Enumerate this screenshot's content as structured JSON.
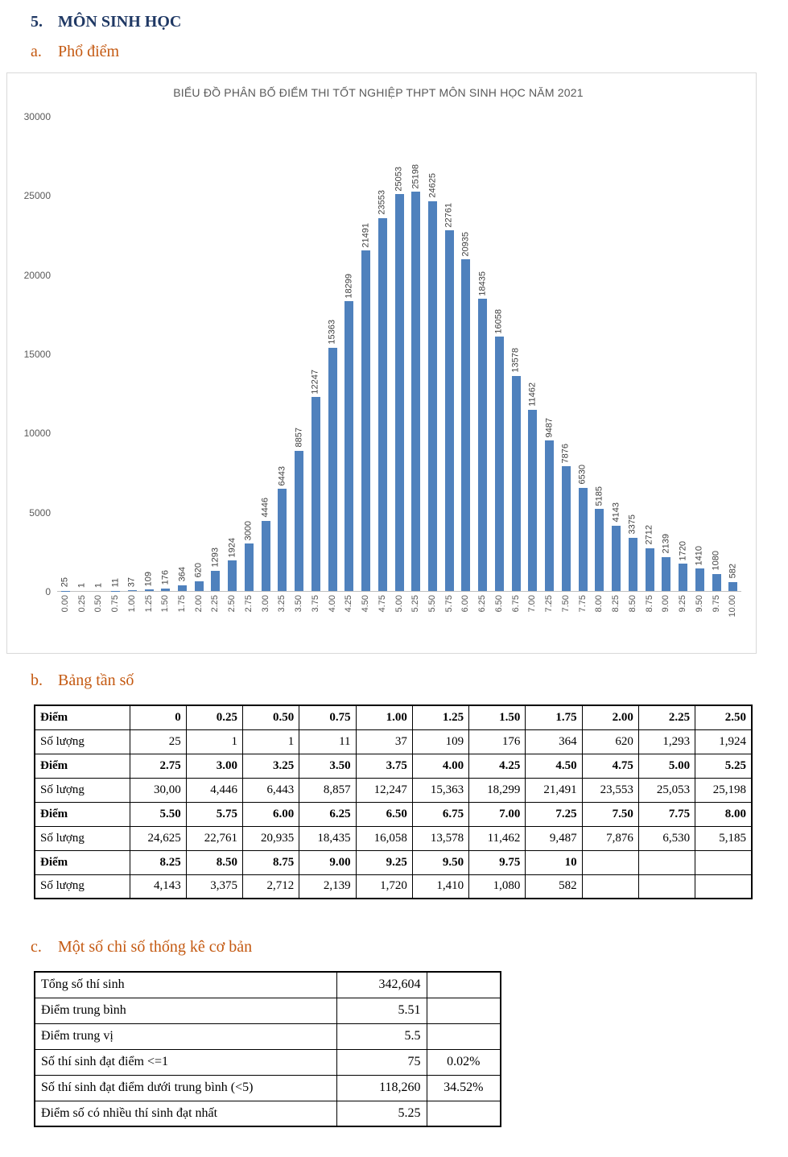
{
  "page": {
    "section_number": "5.",
    "section_title": "MÔN SINH HỌC",
    "sub_a_letter": "a.",
    "sub_a_title": "Phổ điểm",
    "sub_b_letter": "b.",
    "sub_b_title": "Bảng tần số",
    "sub_c_letter": "c.",
    "sub_c_title": "Một số chỉ số thống kê cơ bản"
  },
  "chart_data": {
    "type": "bar",
    "title": "BIỂU ĐỒ PHÂN BỐ ĐIỂM THI TỐT NGHIỆP THPT MÔN SINH HỌC NĂM 2021",
    "categories": [
      "0.00",
      "0.25",
      "0.50",
      "0.75",
      "1.00",
      "1.25",
      "1.50",
      "1.75",
      "2.00",
      "2.25",
      "2.50",
      "2.75",
      "3.00",
      "3.25",
      "3.50",
      "3.75",
      "4.00",
      "4.25",
      "4.50",
      "4.75",
      "5.00",
      "5.25",
      "5.50",
      "5.75",
      "6.00",
      "6.25",
      "6.50",
      "6.75",
      "7.00",
      "7.25",
      "7.50",
      "7.75",
      "8.00",
      "8.25",
      "8.50",
      "8.75",
      "9.00",
      "9.25",
      "9.50",
      "9.75",
      "10.00"
    ],
    "values": [
      25,
      1,
      1,
      11,
      37,
      109,
      176,
      364,
      620,
      1293,
      1924,
      3000,
      4446,
      6443,
      8857,
      12247,
      15363,
      18299,
      21491,
      23553,
      25053,
      25198,
      24625,
      22761,
      20935,
      18435,
      16058,
      13578,
      11462,
      9487,
      7876,
      6530,
      5185,
      4143,
      3375,
      2712,
      2139,
      1720,
      1410,
      1080,
      582
    ],
    "y_ticks": [
      0,
      5000,
      10000,
      15000,
      20000,
      25000,
      30000
    ],
    "ylim": [
      0,
      30000
    ],
    "xlabel": "",
    "ylabel": "",
    "grid": false,
    "legend": false,
    "bar_color": "#4F81BD"
  },
  "freq_table": {
    "rows": [
      {
        "header": "Điểm",
        "bold": true,
        "cells": [
          "0",
          "0.25",
          "0.50",
          "0.75",
          "1.00",
          "1.25",
          "1.50",
          "1.75",
          "2.00",
          "2.25",
          "2.50"
        ]
      },
      {
        "header": "Số lượng",
        "bold": false,
        "cells": [
          "25",
          "1",
          "1",
          "11",
          "37",
          "109",
          "176",
          "364",
          "620",
          "1,293",
          "1,924"
        ]
      },
      {
        "header": "Điểm",
        "bold": true,
        "cells": [
          "2.75",
          "3.00",
          "3.25",
          "3.50",
          "3.75",
          "4.00",
          "4.25",
          "4.50",
          "4.75",
          "5.00",
          "5.25"
        ]
      },
      {
        "header": "Số lượng",
        "bold": false,
        "cells": [
          "30,00",
          "4,446",
          "6,443",
          "8,857",
          "12,247",
          "15,363",
          "18,299",
          "21,491",
          "23,553",
          "25,053",
          "25,198"
        ]
      },
      {
        "header": "Điểm",
        "bold": true,
        "cells": [
          "5.50",
          "5.75",
          "6.00",
          "6.25",
          "6.50",
          "6.75",
          "7.00",
          "7.25",
          "7.50",
          "7.75",
          "8.00"
        ]
      },
      {
        "header": "Số lượng",
        "bold": false,
        "cells": [
          "24,625",
          "22,761",
          "20,935",
          "18,435",
          "16,058",
          "13,578",
          "11,462",
          "9,487",
          "7,876",
          "6,530",
          "5,185"
        ]
      },
      {
        "header": "Điểm",
        "bold": true,
        "cells": [
          "8.25",
          "8.50",
          "8.75",
          "9.00",
          "9.25",
          "9.50",
          "9.75",
          "10",
          "",
          "",
          ""
        ]
      },
      {
        "header": "Số lượng",
        "bold": false,
        "cells": [
          "4,143",
          "3,375",
          "2,712",
          "2,139",
          "1,720",
          "1,410",
          "1,080",
          "582",
          "",
          "",
          ""
        ]
      }
    ]
  },
  "stats_table": {
    "rows": [
      {
        "label": "Tổng số thí sinh",
        "value": "342,604",
        "percent": ""
      },
      {
        "label": "Điểm trung bình",
        "value": "5.51",
        "percent": ""
      },
      {
        "label": "Điểm trung vị",
        "value": "5.5",
        "percent": ""
      },
      {
        "label": "Số thí sinh đạt điểm <=1",
        "value": "75",
        "percent": "0.02%"
      },
      {
        "label": "Số thí sinh đạt điểm dưới trung bình (<5)",
        "value": "118,260",
        "percent": "34.52%"
      },
      {
        "label": "Điểm số có nhiều thí sinh đạt nhất",
        "value": "5.25",
        "percent": ""
      }
    ]
  }
}
